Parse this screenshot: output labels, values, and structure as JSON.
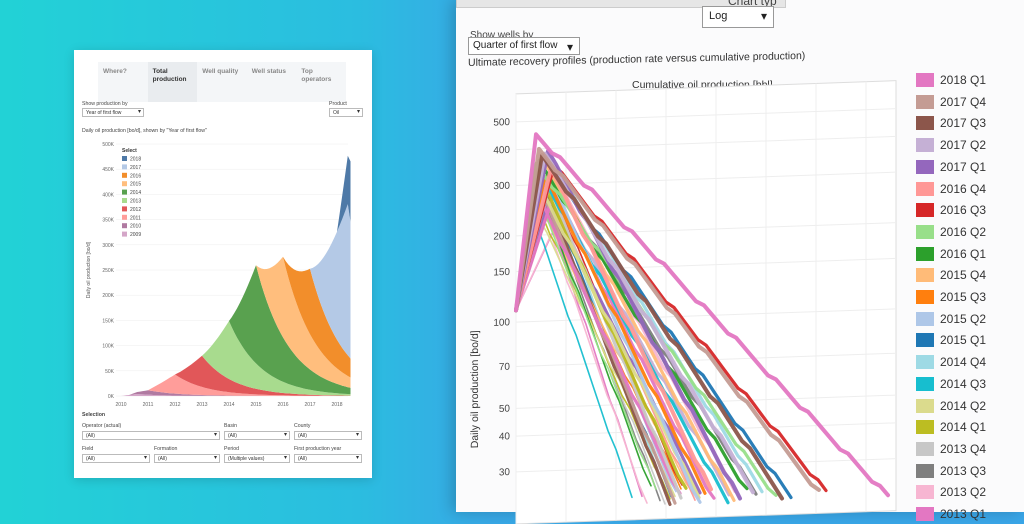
{
  "left": {
    "tabs": [
      "Where?",
      "Total production",
      "Well quality",
      "Well status",
      "Top operators"
    ],
    "show_by_label": "Show production by",
    "show_by_value": "Year of first flow",
    "product_label": "Product",
    "product_value": "Oil",
    "chart_title": "Daily oil production [bo/d], shown by \"Year of first flow\"",
    "legend_title": "Select",
    "ylabel": "Daily oil production [bo/d]",
    "selection_label": "Selection",
    "filters": [
      {
        "label": "Operator (actual)",
        "value": "(All)"
      },
      {
        "label": "Basin",
        "value": "(All)"
      },
      {
        "label": "County",
        "value": "(All)"
      },
      {
        "label": "Field",
        "value": "(All)"
      },
      {
        "label": "Formation",
        "value": "(All)"
      },
      {
        "label": "Period",
        "value": "(Multiple values)"
      },
      {
        "label": "First production year",
        "value": "(All)"
      }
    ]
  },
  "right": {
    "chart_type_label": "Chart typ",
    "chart_type_value": "Log",
    "show_wells_label": "Show wells by",
    "show_wells_value": "Quarter of first flow",
    "chart_title": "Ultimate recovery profiles (production rate versus cumulative production)",
    "xlabel": "Cumulative oil production [bbl]",
    "ylabel": "Daily oil production [bo/d]"
  },
  "chart_data": [
    {
      "type": "area",
      "title": "Daily oil production [bo/d], shown by \"Year of first flow\"",
      "ylabel": "Daily oil production [bo/d]",
      "x": [
        "2010",
        "2011",
        "2012",
        "2013",
        "2014",
        "2015",
        "2016",
        "2017",
        "2018"
      ],
      "y_ticks": [
        "0K",
        "50K",
        "100K",
        "150K",
        "200K",
        "250K",
        "300K",
        "350K",
        "400K",
        "450K",
        "500K"
      ],
      "ylim": [
        0,
        500000
      ],
      "legend": [
        "2018",
        "2017",
        "2016",
        "2015",
        "2014",
        "2013",
        "2012",
        "2011",
        "2010",
        "2009"
      ],
      "colors": {
        "2018": "#4e79a7",
        "2017": "#b4c9e6",
        "2016": "#f28e2b",
        "2015": "#ffbe7d",
        "2014": "#59a14f",
        "2013": "#a8db8e",
        "2012": "#e15759",
        "2011": "#ff9d9a",
        "2010": "#b07aa1",
        "2009": "#d4a6c8"
      }
    },
    {
      "type": "line",
      "title": "Ultimate recovery profiles (production rate versus cumulative production)",
      "xlabel": "Cumulative oil production [bbl]",
      "ylabel": "Daily oil production [bo/d]",
      "scale": "log",
      "y_ticks": [
        "500",
        "400",
        "300",
        "200",
        "150",
        "100",
        "70",
        "50",
        "40",
        "30"
      ],
      "legend": [
        "2018 Q1",
        "2017 Q4",
        "2017 Q3",
        "2017 Q2",
        "2017 Q1",
        "2016 Q4",
        "2016 Q3",
        "2016 Q2",
        "2016 Q1",
        "2015 Q4",
        "2015 Q3",
        "2015 Q2",
        "2015 Q1",
        "2014 Q4",
        "2014 Q3",
        "2014 Q2",
        "2014 Q1",
        "2013 Q4",
        "2013 Q3",
        "2013 Q2",
        "2013 Q1"
      ],
      "colors": [
        "#e377c2",
        "#c49c94",
        "#8c564b",
        "#c5b0d5",
        "#9467bd",
        "#ff9896",
        "#d62728",
        "#98df8a",
        "#2ca02c",
        "#ffbb78",
        "#ff7f0e",
        "#aec7e8",
        "#1f77b4",
        "#9edae5",
        "#17becf",
        "#dbdb8d",
        "#bcbd22",
        "#c7c7c7",
        "#7f7f7f",
        "#f7b6d2",
        "#e377c2"
      ]
    }
  ]
}
